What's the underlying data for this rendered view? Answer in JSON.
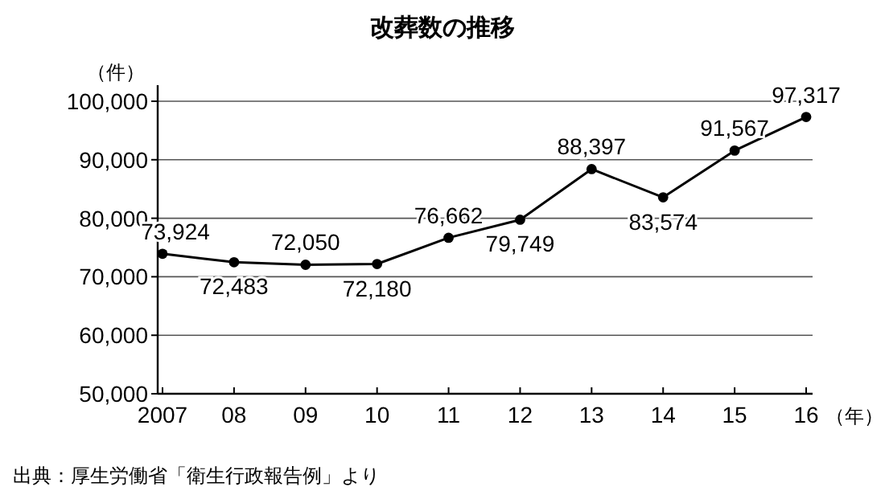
{
  "chart_data": {
    "type": "line",
    "title": "改葬数の推移",
    "ylabel": "（件）",
    "xlabel": "（年）",
    "categories": [
      "2007",
      "08",
      "09",
      "10",
      "11",
      "12",
      "13",
      "14",
      "15",
      "16"
    ],
    "series": [
      {
        "color": "#000000",
        "values": [
          73924,
          72483,
          72050,
          72180,
          76662,
          79749,
          88397,
          83574,
          91567,
          97317
        ]
      }
    ],
    "ylim": [
      50000,
      100000
    ],
    "yticks": [
      {
        "value": 50000,
        "label": "50,000"
      },
      {
        "value": 60000,
        "label": "60,000"
      },
      {
        "value": 70000,
        "label": "70,000"
      },
      {
        "value": 80000,
        "label": "80,000"
      },
      {
        "value": 90000,
        "label": "90,000"
      },
      {
        "value": 100000,
        "label": "100,000"
      }
    ],
    "value_labels": [
      "73,924",
      "72,483",
      "72,050",
      "72,180",
      "76,662",
      "79,749",
      "88,397",
      "83,574",
      "91,567",
      "97,317"
    ],
    "grid": "y",
    "marker": "circle",
    "line_style": "solid",
    "annotations": [
      "出典：厚生労働省「衛生行政報告例」より"
    ]
  }
}
